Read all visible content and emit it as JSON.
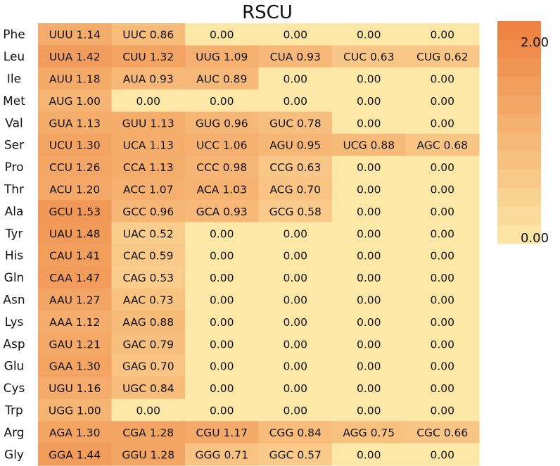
{
  "chart_data": {
    "type": "heatmap",
    "title": "RSCU",
    "rows": [
      "Phe",
      "Leu",
      "Ile",
      "Met",
      "Val",
      "Ser",
      "Pro",
      "Thr",
      "Ala",
      "Tyr",
      "His",
      "Gln",
      "Asn",
      "Lys",
      "Asp",
      "Glu",
      "Cys",
      "Trp",
      "Arg",
      "Gly"
    ],
    "cells": [
      [
        {
          "codon": "UUU",
          "value": 1.14
        },
        {
          "codon": "UUC",
          "value": 0.86
        },
        {
          "codon": "",
          "value": 0
        },
        {
          "codon": "",
          "value": 0
        },
        {
          "codon": "",
          "value": 0
        },
        {
          "codon": "",
          "value": 0
        }
      ],
      [
        {
          "codon": "UUA",
          "value": 1.42
        },
        {
          "codon": "CUU",
          "value": 1.32
        },
        {
          "codon": "UUG",
          "value": 1.09
        },
        {
          "codon": "CUA",
          "value": 0.93
        },
        {
          "codon": "CUC",
          "value": 0.63
        },
        {
          "codon": "CUG",
          "value": 0.62
        }
      ],
      [
        {
          "codon": "AUU",
          "value": 1.18
        },
        {
          "codon": "AUA",
          "value": 0.93
        },
        {
          "codon": "AUC",
          "value": 0.89
        },
        {
          "codon": "",
          "value": 0
        },
        {
          "codon": "",
          "value": 0
        },
        {
          "codon": "",
          "value": 0
        }
      ],
      [
        {
          "codon": "AUG",
          "value": 1.0
        },
        {
          "codon": "",
          "value": 0
        },
        {
          "codon": "",
          "value": 0
        },
        {
          "codon": "",
          "value": 0
        },
        {
          "codon": "",
          "value": 0
        },
        {
          "codon": "",
          "value": 0
        }
      ],
      [
        {
          "codon": "GUA",
          "value": 1.13
        },
        {
          "codon": "GUU",
          "value": 1.13
        },
        {
          "codon": "GUG",
          "value": 0.96
        },
        {
          "codon": "GUC",
          "value": 0.78
        },
        {
          "codon": "",
          "value": 0
        },
        {
          "codon": "",
          "value": 0
        }
      ],
      [
        {
          "codon": "UCU",
          "value": 1.3
        },
        {
          "codon": "UCA",
          "value": 1.13
        },
        {
          "codon": "UCC",
          "value": 1.06
        },
        {
          "codon": "AGU",
          "value": 0.95
        },
        {
          "codon": "UCG",
          "value": 0.88
        },
        {
          "codon": "AGC",
          "value": 0.68
        }
      ],
      [
        {
          "codon": "CCU",
          "value": 1.26
        },
        {
          "codon": "CCA",
          "value": 1.13
        },
        {
          "codon": "CCC",
          "value": 0.98
        },
        {
          "codon": "CCG",
          "value": 0.63
        },
        {
          "codon": "",
          "value": 0
        },
        {
          "codon": "",
          "value": 0
        }
      ],
      [
        {
          "codon": "ACU",
          "value": 1.2
        },
        {
          "codon": "ACC",
          "value": 1.07
        },
        {
          "codon": "ACA",
          "value": 1.03
        },
        {
          "codon": "ACG",
          "value": 0.7
        },
        {
          "codon": "",
          "value": 0
        },
        {
          "codon": "",
          "value": 0
        }
      ],
      [
        {
          "codon": "GCU",
          "value": 1.53
        },
        {
          "codon": "GCC",
          "value": 0.96
        },
        {
          "codon": "GCA",
          "value": 0.93
        },
        {
          "codon": "GCG",
          "value": 0.58
        },
        {
          "codon": "",
          "value": 0
        },
        {
          "codon": "",
          "value": 0
        }
      ],
      [
        {
          "codon": "UAU",
          "value": 1.48
        },
        {
          "codon": "UAC",
          "value": 0.52
        },
        {
          "codon": "",
          "value": 0
        },
        {
          "codon": "",
          "value": 0
        },
        {
          "codon": "",
          "value": 0
        },
        {
          "codon": "",
          "value": 0
        }
      ],
      [
        {
          "codon": "CAU",
          "value": 1.41
        },
        {
          "codon": "CAC",
          "value": 0.59
        },
        {
          "codon": "",
          "value": 0
        },
        {
          "codon": "",
          "value": 0
        },
        {
          "codon": "",
          "value": 0
        },
        {
          "codon": "",
          "value": 0
        }
      ],
      [
        {
          "codon": "CAA",
          "value": 1.47
        },
        {
          "codon": "CAG",
          "value": 0.53
        },
        {
          "codon": "",
          "value": 0
        },
        {
          "codon": "",
          "value": 0
        },
        {
          "codon": "",
          "value": 0
        },
        {
          "codon": "",
          "value": 0
        }
      ],
      [
        {
          "codon": "AAU",
          "value": 1.27
        },
        {
          "codon": "AAC",
          "value": 0.73
        },
        {
          "codon": "",
          "value": 0
        },
        {
          "codon": "",
          "value": 0
        },
        {
          "codon": "",
          "value": 0
        },
        {
          "codon": "",
          "value": 0
        }
      ],
      [
        {
          "codon": "AAA",
          "value": 1.12
        },
        {
          "codon": "AAG",
          "value": 0.88
        },
        {
          "codon": "",
          "value": 0
        },
        {
          "codon": "",
          "value": 0
        },
        {
          "codon": "",
          "value": 0
        },
        {
          "codon": "",
          "value": 0
        }
      ],
      [
        {
          "codon": "GAU",
          "value": 1.21
        },
        {
          "codon": "GAC",
          "value": 0.79
        },
        {
          "codon": "",
          "value": 0
        },
        {
          "codon": "",
          "value": 0
        },
        {
          "codon": "",
          "value": 0
        },
        {
          "codon": "",
          "value": 0
        }
      ],
      [
        {
          "codon": "GAA",
          "value": 1.3
        },
        {
          "codon": "GAG",
          "value": 0.7
        },
        {
          "codon": "",
          "value": 0
        },
        {
          "codon": "",
          "value": 0
        },
        {
          "codon": "",
          "value": 0
        },
        {
          "codon": "",
          "value": 0
        }
      ],
      [
        {
          "codon": "UGU",
          "value": 1.16
        },
        {
          "codon": "UGC",
          "value": 0.84
        },
        {
          "codon": "",
          "value": 0
        },
        {
          "codon": "",
          "value": 0
        },
        {
          "codon": "",
          "value": 0
        },
        {
          "codon": "",
          "value": 0
        }
      ],
      [
        {
          "codon": "UGG",
          "value": 1.0
        },
        {
          "codon": "",
          "value": 0
        },
        {
          "codon": "",
          "value": 0
        },
        {
          "codon": "",
          "value": 0
        },
        {
          "codon": "",
          "value": 0
        },
        {
          "codon": "",
          "value": 0
        }
      ],
      [
        {
          "codon": "AGA",
          "value": 1.3
        },
        {
          "codon": "CGA",
          "value": 1.28
        },
        {
          "codon": "CGU",
          "value": 1.17
        },
        {
          "codon": "CGG",
          "value": 0.84
        },
        {
          "codon": "AGG",
          "value": 0.75
        },
        {
          "codon": "CGC",
          "value": 0.66
        }
      ],
      [
        {
          "codon": "GGA",
          "value": 1.44
        },
        {
          "codon": "GGU",
          "value": 1.28
        },
        {
          "codon": "GGG",
          "value": 0.71
        },
        {
          "codon": "GGC",
          "value": 0.57
        },
        {
          "codon": "",
          "value": 0
        },
        {
          "codon": "",
          "value": 0
        }
      ]
    ],
    "colorbar": {
      "min": 0.0,
      "max": 2.0,
      "ticks": [
        "2.00",
        "0.00"
      ],
      "low_color": "#FDE8A8",
      "high_color": "#EE7F3E"
    }
  }
}
